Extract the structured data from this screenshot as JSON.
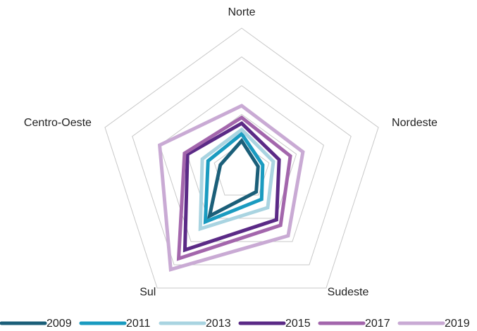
{
  "chart_data": {
    "type": "radar",
    "categories": [
      "Norte",
      "Nordeste",
      "Sudeste",
      "Sul",
      "Centro-Oeste"
    ],
    "ylim": [
      0,
      5
    ],
    "yticks": [
      1,
      2,
      3,
      4,
      5
    ],
    "grid": true,
    "legend": "bottom",
    "series": [
      {
        "name": "2009",
        "color": "#1b5f79",
        "values": [
          1.08,
          0.6,
          0.86,
          1.9,
          0.78
        ]
      },
      {
        "name": "2011",
        "color": "#1a9bc0",
        "values": [
          1.32,
          0.77,
          1.18,
          2.15,
          1.23
        ]
      },
      {
        "name": "2013",
        "color": "#a9d4e1",
        "values": [
          1.47,
          1.16,
          1.54,
          2.45,
          1.44
        ]
      },
      {
        "name": "2015",
        "color": "#5b2a86",
        "values": [
          1.69,
          1.37,
          2.06,
          3.36,
          1.98
        ]
      },
      {
        "name": "2017",
        "color": "#a366ac",
        "values": [
          1.89,
          1.78,
          2.3,
          3.73,
          2.09
        ]
      },
      {
        "name": "2019",
        "color": "#c9aad4",
        "values": [
          2.3,
          2.24,
          2.75,
          4.2,
          3.0
        ]
      }
    ]
  }
}
